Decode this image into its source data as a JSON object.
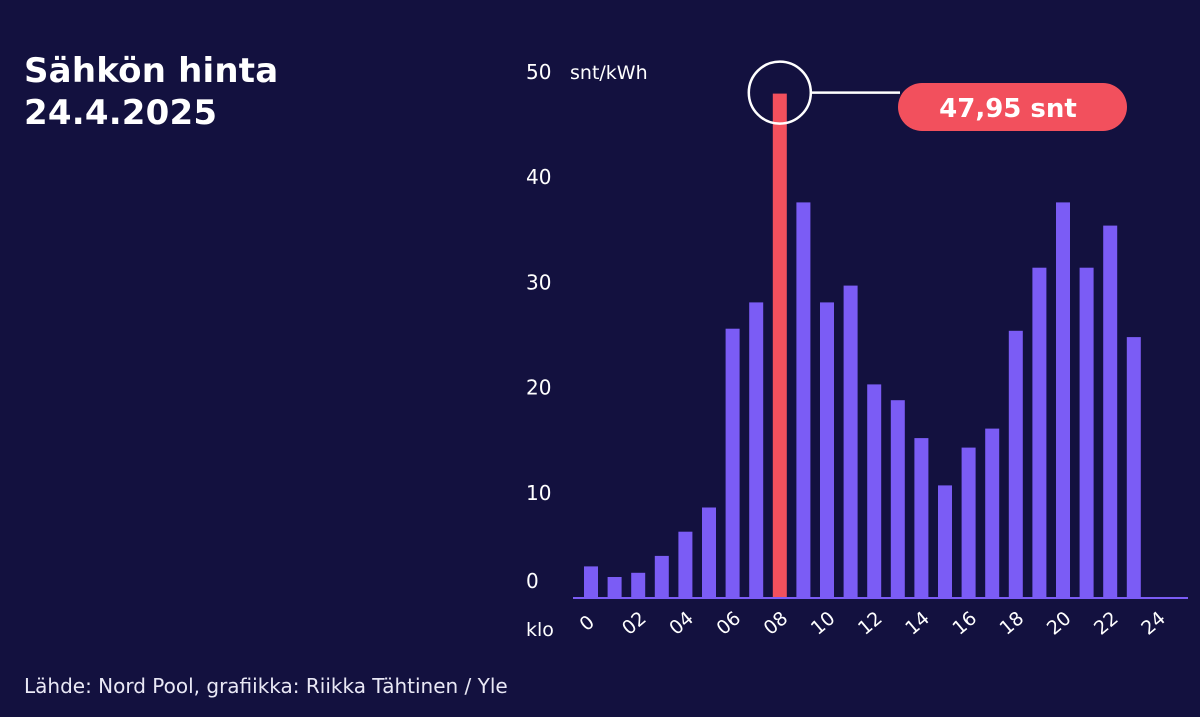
{
  "title_lines": [
    "Sähkön hinta",
    "24.4.2025"
  ],
  "source": "Lähde: Nord Pool, grafiikka: Riikka Tähtinen / Yle",
  "colors": {
    "background": "#13113f",
    "bar": "#7b5cf5",
    "highlight": "#f2505d",
    "text": "#ffffff"
  },
  "chart_data": {
    "type": "bar",
    "title": "Sähkön hinta 24.4.2025",
    "ylabel": "snt/kWh",
    "xlabel": "klo",
    "ylim": [
      0,
      50
    ],
    "yticks": [
      0,
      10,
      20,
      30,
      40,
      50
    ],
    "xtick_labels": [
      "0",
      "02",
      "04",
      "06",
      "08",
      "10",
      "12",
      "14",
      "16",
      "18",
      "20",
      "22",
      "24"
    ],
    "categories": [
      "0",
      "1",
      "2",
      "3",
      "4",
      "5",
      "6",
      "7",
      "8",
      "9",
      "10",
      "11",
      "12",
      "13",
      "14",
      "15",
      "16",
      "17",
      "18",
      "19",
      "20",
      "21",
      "22",
      "23"
    ],
    "values": [
      3.0,
      2.0,
      2.4,
      4.0,
      6.3,
      8.6,
      25.6,
      28.1,
      47.95,
      37.6,
      28.1,
      29.7,
      20.3,
      18.8,
      15.2,
      10.7,
      14.3,
      16.1,
      25.4,
      31.4,
      37.6,
      31.4,
      35.4,
      24.8
    ],
    "highlight_index": 8,
    "highlight_label": "47,95 snt"
  }
}
